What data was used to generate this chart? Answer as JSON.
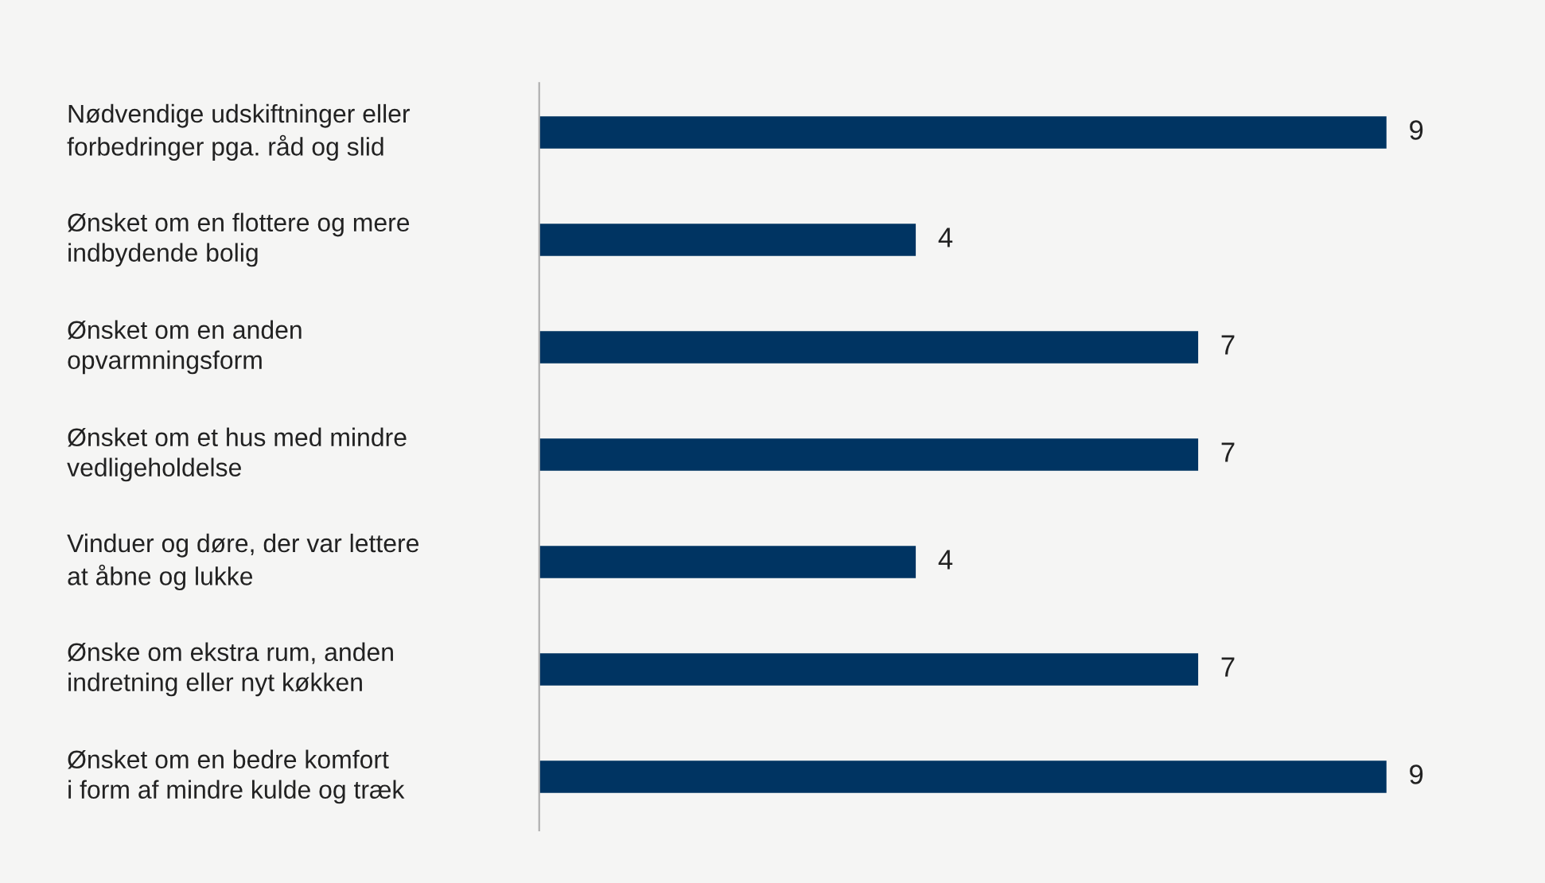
{
  "chart_data": {
    "type": "bar",
    "orientation": "horizontal",
    "categories": [
      "Nødvendige udskiftninger eller\nforbedringer pga. råd og slid",
      "Ønsket om en flottere og mere\nindbydende bolig",
      "Ønsket om en anden\nopvarmningsform",
      "Ønsket om et hus med mindre\nvedligeholdelse",
      "Vinduer og døre, der var lettere\nat åbne og lukke",
      "Ønske om ekstra rum, anden\nindretning eller nyt køkken",
      "Ønsket om en bedre komfort\ni form af mindre kulde og træk"
    ],
    "values": [
      9,
      4,
      7,
      7,
      4,
      7,
      9
    ],
    "color": "#003462",
    "data_labels": true
  }
}
